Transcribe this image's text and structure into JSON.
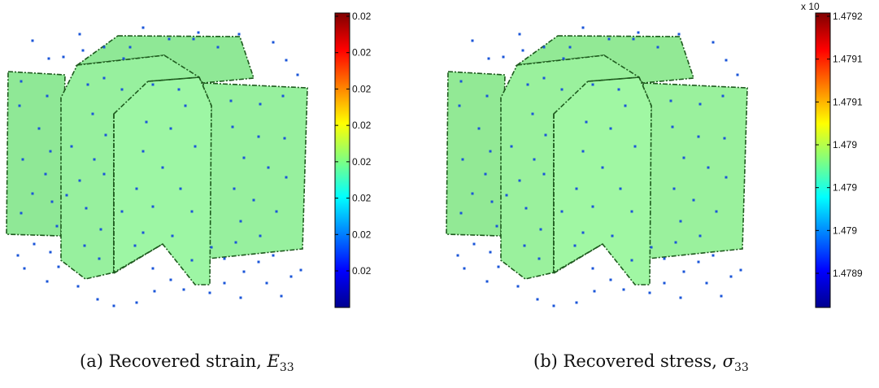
{
  "figures": [
    {
      "caption_prefix": "(a) Recovered strain, ",
      "caption_symbol": "E",
      "caption_sub": "33",
      "colorbar_exponent": "",
      "chart_data": {
        "type": "heatmap",
        "colormap": "jet",
        "colorbar_ticks": [
          "0.02",
          "0.02",
          "0.02",
          "0.02",
          "0.02",
          "0.02",
          "0.02",
          "0.02"
        ],
        "face_color": "#8fe896",
        "grid": false
      }
    },
    {
      "caption_prefix": "(b) Recovered stress, ",
      "caption_symbol": "σ",
      "caption_sub": "33",
      "colorbar_exponent": "x 10",
      "chart_data": {
        "type": "heatmap",
        "colormap": "jet",
        "colorbar_ticks": [
          "1.4792",
          "1.4791",
          "1.4791",
          "1.479",
          "1.479",
          "1.479",
          "1.4789"
        ],
        "face_color": "#92e995",
        "grid": false
      }
    }
  ]
}
